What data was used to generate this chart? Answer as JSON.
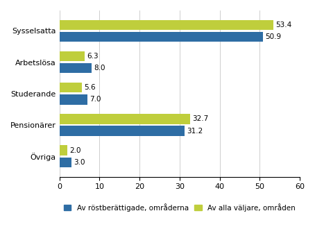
{
  "categories_top_to_bottom": [
    "Sysselsatta",
    "Arbetslösa",
    "Studerande",
    "Pensionärer",
    "Övriga"
  ],
  "blue_values_top_to_bottom": [
    50.9,
    8.0,
    7.0,
    31.2,
    3.0
  ],
  "green_values_top_to_bottom": [
    53.4,
    6.3,
    5.6,
    32.7,
    2.0
  ],
  "blue_color": "#2E6DA4",
  "green_color": "#BFCE3C",
  "blue_label": "Av röstberättigade, områderna",
  "green_label": "Av alla väljare, områden",
  "xlim": [
    0,
    60
  ],
  "xticks": [
    0,
    10,
    20,
    30,
    40,
    50,
    60
  ],
  "bar_height": 0.32,
  "bar_gap": 0.06,
  "tick_fontsize": 8,
  "legend_fontsize": 7.5,
  "value_fontsize": 7.5
}
